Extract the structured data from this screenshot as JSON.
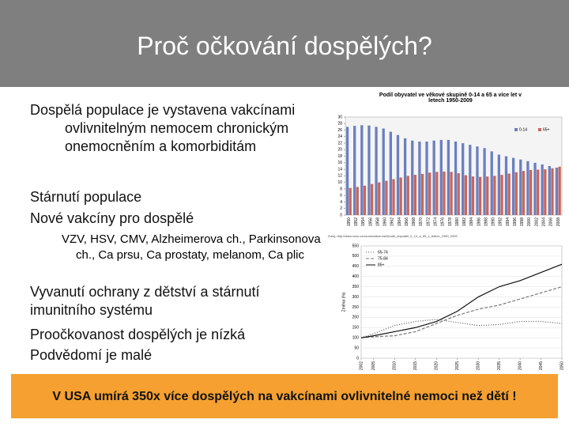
{
  "title": "Proč očkování dospělých?",
  "bullets": [
    "Dospělá populace je vystavena vakcínami ovlivnitelným nemocem chronickým onemocněním a komorbiditám",
    "Stárnutí populace",
    "Nové vakcíny pro dospělé"
  ],
  "sub_bullet": "VZV, HSV, CMV, Alzheimerova ch., Parkinsonova ch., Ca prsu, Ca prostaty, melanom, Ca plic",
  "bullets_2": [
    "Vyvanutí ochrany z dětství a stárnutí imunitního systému",
    "Proočkovanost dospělých je nízká",
    "Podvědomí je malé"
  ],
  "callout": "V USA umírá 350x více dospělých na vakcínami ovlivnitelné nemoci než dětí !",
  "chart_data": [
    {
      "type": "bar",
      "title": "Podíl obyvatel ve věkové skupině 0-14 a 65 a více let v letech 1950-2009",
      "source": "Zdroj: http://www.czso.cz/csu/redakce.nsf/i/podil_obyvatel_0_14_a_65_v_letech_1950_2009",
      "categories": [
        "1950",
        "1952",
        "1954",
        "1956",
        "1958",
        "1960",
        "1962",
        "1964",
        "1966",
        "1968",
        "1970",
        "1972",
        "1974",
        "1976",
        "1978",
        "1980",
        "1982",
        "1984",
        "1986",
        "1988",
        "1990",
        "1992",
        "1994",
        "1996",
        "1998",
        "2000",
        "2002",
        "2004",
        "2006",
        "2008"
      ],
      "series": [
        {
          "name": "0-14",
          "color": "#6b7fc0",
          "values": [
            27,
            27.3,
            27.5,
            27.4,
            27,
            26.5,
            25.5,
            24.5,
            23.5,
            22.8,
            22.5,
            22.5,
            22.8,
            23,
            23,
            22.5,
            22,
            21.5,
            21,
            20.5,
            19.5,
            18.5,
            18,
            17.5,
            17,
            16.5,
            16,
            15.5,
            15,
            14.5
          ]
        },
        {
          "name": "65+",
          "color": "#c9665a",
          "values": [
            8.3,
            8.6,
            9,
            9.5,
            10,
            10.5,
            11,
            11.5,
            12,
            12.3,
            12.6,
            13,
            13.2,
            13.3,
            13.2,
            12.8,
            12.2,
            11.8,
            11.7,
            11.8,
            12,
            12.3,
            12.7,
            13.1,
            13.5,
            13.8,
            13.9,
            14,
            14.3,
            14.8
          ]
        }
      ],
      "ylim": [
        0,
        30
      ],
      "yticks": [
        0,
        2,
        4,
        6,
        8,
        10,
        12,
        14,
        16,
        18,
        20,
        22,
        24,
        26,
        28,
        30
      ],
      "grid": false
    },
    {
      "type": "line",
      "y_label": "Změna (%)",
      "x": [
        2002,
        2005,
        2010,
        2015,
        2020,
        2025,
        2030,
        2035,
        2040,
        2045,
        2050
      ],
      "series": [
        {
          "name": "65-74",
          "color": "#555555",
          "dash": "1 2",
          "values": [
            100,
            120,
            160,
            180,
            190,
            175,
            160,
            165,
            180,
            180,
            170
          ]
        },
        {
          "name": "75-84",
          "color": "#777777",
          "dash": "4 2",
          "values": [
            100,
            105,
            110,
            130,
            170,
            210,
            240,
            260,
            290,
            320,
            350
          ]
        },
        {
          "name": "85+",
          "color": "#111111",
          "dash": "none",
          "values": [
            100,
            110,
            130,
            150,
            180,
            230,
            300,
            350,
            380,
            420,
            460
          ]
        }
      ],
      "xlim": [
        2002,
        2050
      ],
      "xticks": [
        2002,
        2005,
        2010,
        2015,
        2020,
        2025,
        2030,
        2035,
        2040,
        2045,
        2050
      ],
      "ylim": [
        0,
        550
      ],
      "yticks": [
        0,
        50,
        100,
        150,
        200,
        250,
        300,
        350,
        400,
        450,
        500,
        550
      ],
      "grid": true
    }
  ]
}
